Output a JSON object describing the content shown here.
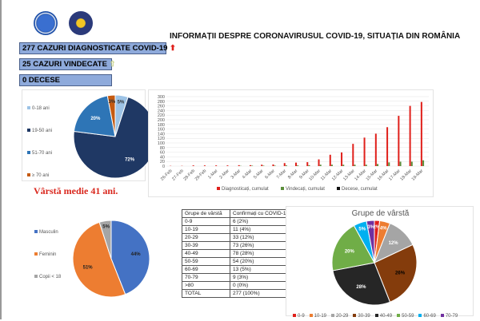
{
  "header": {
    "title": "INFORMAȚII DESPRE CORONAVIRUSUL COVID-19, SITUAȚIA DIN ROMÂNIA",
    "logos": [
      "Guvernul României seal",
      "Ministerul Afacerilor Interne emblem"
    ]
  },
  "stats": {
    "diagnosed": "277 CAZURI DIAGNOSTICATE COVID-19",
    "diagnosed_icon": "arrow-up-red",
    "cured": "25 CAZURI VINDECATE",
    "cured_icon": "arrow-up-green",
    "deaths": "0 DECESE"
  },
  "median_age": "Vârstă medie 41 ani.",
  "colors": {
    "box": "#8eaadb",
    "red": "#d9261c"
  },
  "chart_data": [
    {
      "type": "pie",
      "title": "",
      "labels": [
        "0-18 ani",
        "19-50 ani",
        "51-70 ani",
        "≥ 70 ani"
      ],
      "values": [
        5,
        72,
        20,
        3
      ],
      "value_labels": [
        "5%",
        "72%",
        "20%",
        "3%"
      ],
      "colors": [
        "#9dc3e6",
        "#1f3864",
        "#2e75b6",
        "#c55a11"
      ],
      "legend": "left"
    },
    {
      "type": "bar",
      "title": "",
      "categories": [
        "26-Feb",
        "27-Feb",
        "28-Feb",
        "29-Feb",
        "1-Mar",
        "2-Mar",
        "3-Mar",
        "4-Mar",
        "5-Mar",
        "6-Mar",
        "7-Mar",
        "8-Mar",
        "9-Mar",
        "10-Mar",
        "11-Mar",
        "12-Mar",
        "13-Mar",
        "14-Mar",
        "15-Mar",
        "16-Mar",
        "17-Mar",
        "18-Mar",
        "19-Mar"
      ],
      "series": [
        {
          "name": "Diagnosticați, cumulat",
          "color": "#e0201b",
          "values": [
            1,
            1,
            3,
            3,
            3,
            3,
            4,
            4,
            6,
            7,
            13,
            15,
            17,
            29,
            49,
            59,
            96,
            123,
            140,
            168,
            217,
            260,
            277
          ]
        },
        {
          "name": "Vindecați, cumulat",
          "color": "#5b8e3a",
          "values": [
            0,
            0,
            0,
            0,
            0,
            0,
            1,
            2,
            2,
            2,
            3,
            3,
            4,
            6,
            6,
            6,
            6,
            6,
            9,
            16,
            19,
            19,
            25
          ]
        },
        {
          "name": "Decese, cumulat",
          "color": "#111111",
          "values": [
            0,
            0,
            0,
            0,
            0,
            0,
            0,
            0,
            0,
            0,
            0,
            0,
            0,
            0,
            0,
            0,
            0,
            0,
            0,
            0,
            0,
            0,
            0
          ]
        }
      ],
      "ylim": [
        0,
        300
      ],
      "yticks": [
        0,
        20,
        40,
        60,
        80,
        100,
        120,
        140,
        160,
        180,
        200,
        220,
        240,
        260,
        280,
        300
      ],
      "grid": true,
      "legend": "bottom"
    },
    {
      "type": "pie",
      "title": "",
      "labels": [
        "Masculin",
        "Feminin",
        "Copii < 18"
      ],
      "values": [
        44,
        51,
        5
      ],
      "value_labels": [
        "44%",
        "51%",
        "5%"
      ],
      "colors": [
        "#4472c4",
        "#ed7d31",
        "#a5a5a5"
      ],
      "legend": "left"
    },
    {
      "type": "table",
      "headers": [
        "Grupe de vârstă",
        "Confirmați cu COVID-19"
      ],
      "rows": [
        [
          "0-9",
          "6 (2%)"
        ],
        [
          "10-19",
          "11 (4%)"
        ],
        [
          "20-29",
          "33 (12%)"
        ],
        [
          "30-39",
          "73 (26%)"
        ],
        [
          "40-49",
          "78 (28%)"
        ],
        [
          "50-59",
          "54 (20%)"
        ],
        [
          "60-69",
          "13 (5%)"
        ],
        [
          "70-79",
          "9 (3%)"
        ],
        [
          ">80",
          "0 (0%)"
        ],
        [
          "TOTAL",
          "277 (100%)"
        ]
      ]
    },
    {
      "type": "pie",
      "title": "Grupe de vârstă",
      "labels": [
        "0-9",
        "10-19",
        "20-29",
        "30-39",
        "40-49",
        "50-59",
        "60-69",
        "70-79"
      ],
      "values": [
        2,
        4,
        12,
        26,
        28,
        20,
        5,
        3
      ],
      "value_labels": [
        "2%",
        "4%",
        "12%",
        "26%",
        "28%",
        "20%",
        "5%",
        "3%"
      ],
      "colors": [
        "#e0201b",
        "#ed7d31",
        "#a5a5a5",
        "#843c0c",
        "#262626",
        "#70ad47",
        "#00b0f0",
        "#7030a0"
      ],
      "legend": "bottom"
    }
  ]
}
